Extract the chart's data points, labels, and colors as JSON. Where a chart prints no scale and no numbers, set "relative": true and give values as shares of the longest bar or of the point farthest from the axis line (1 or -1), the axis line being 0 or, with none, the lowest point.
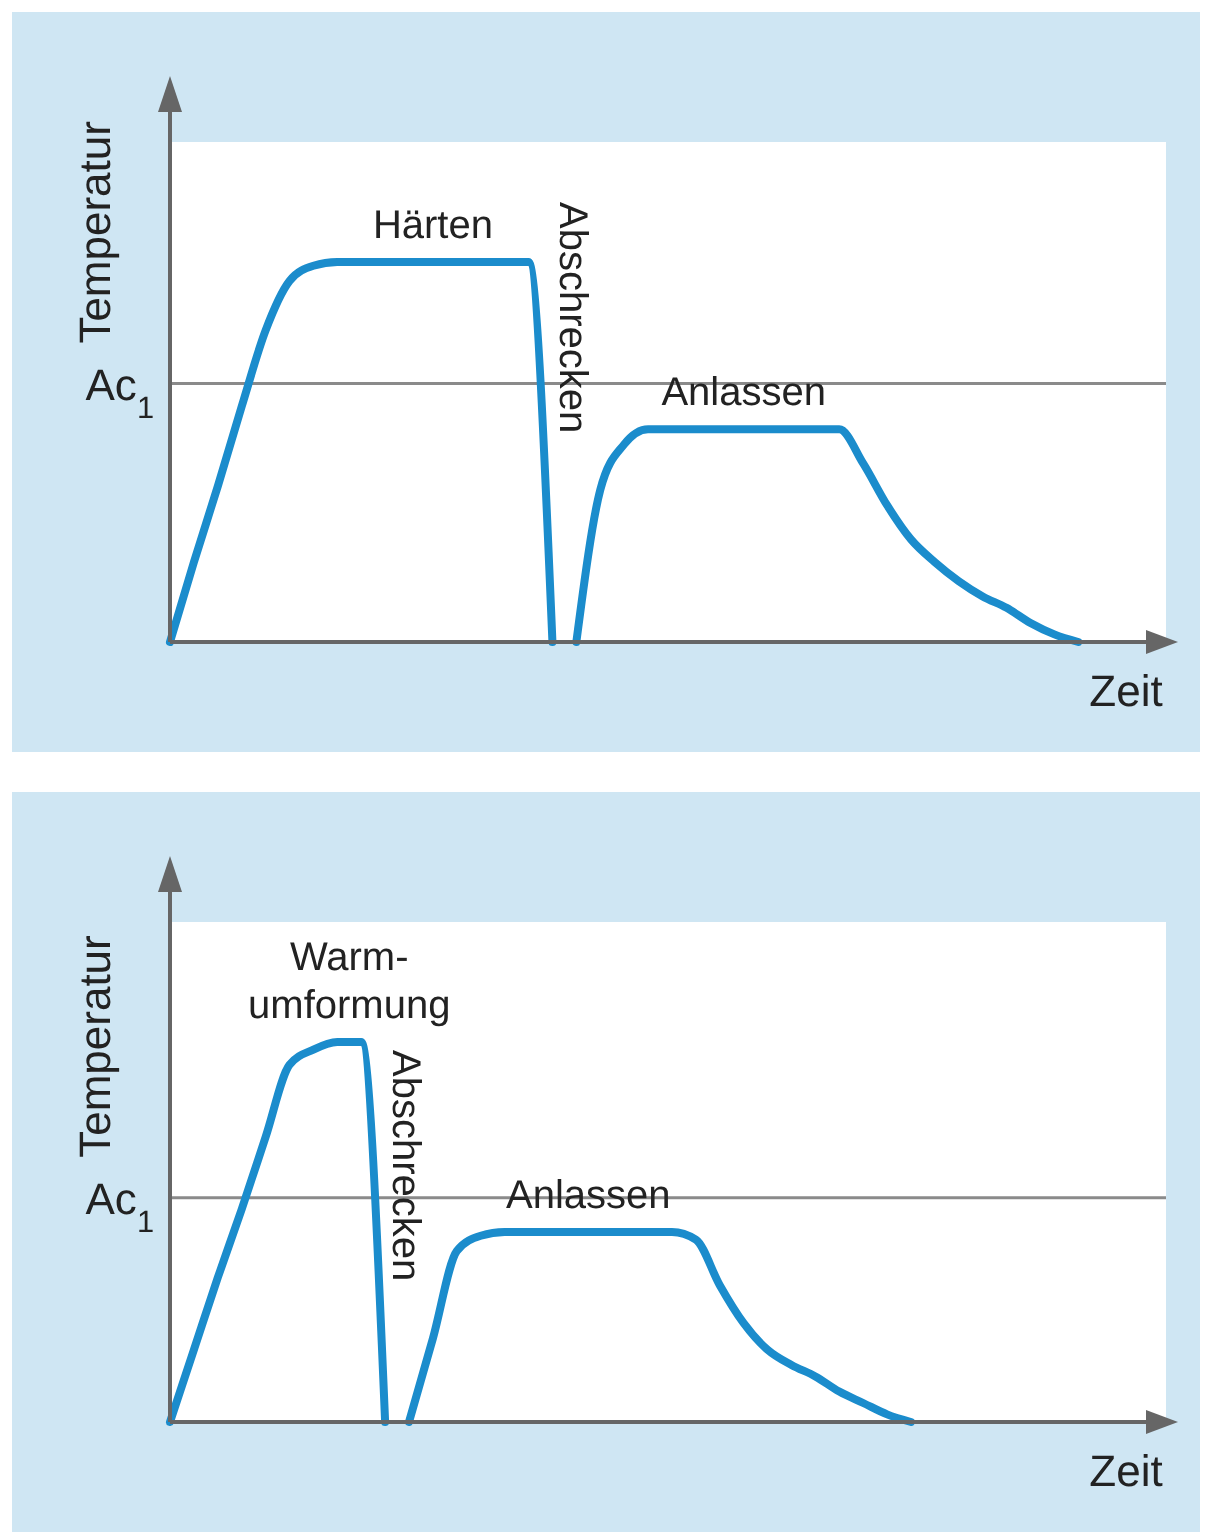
{
  "chart_data": [
    {
      "type": "line",
      "relative": true,
      "xlabel": "Zeit",
      "ylabel": "Temperatur",
      "categories": [
        null,
        null,
        null,
        null,
        null,
        null,
        null,
        null,
        null,
        null,
        null,
        null,
        null,
        null,
        null,
        null,
        null,
        null,
        null,
        null,
        null,
        null,
        null,
        null,
        null,
        null,
        null,
        null,
        null,
        null,
        null,
        null,
        null,
        null,
        null,
        null,
        null,
        null,
        null,
        null,
        null,
        null
      ],
      "series": [
        {
          "color": "#1b8ccc",
          "values": [
            0,
            0.21,
            0.41,
            0.62,
            0.82,
            0.95,
            0.99,
            1,
            1,
            1,
            1,
            1,
            1,
            1,
            1,
            1,
            0,
            null,
            null,
            null,
            null,
            null,
            null,
            null,
            null,
            null,
            null,
            null,
            null,
            null,
            null,
            null,
            null,
            null,
            null,
            null,
            null,
            null,
            null,
            null,
            null,
            null
          ]
        },
        {
          "color": "#1b8ccc",
          "values": [
            null,
            null,
            null,
            null,
            null,
            null,
            null,
            null,
            null,
            null,
            null,
            null,
            null,
            null,
            null,
            null,
            null,
            0,
            0.4,
            0.52,
            0.56,
            0.56,
            0.56,
            0.56,
            0.56,
            0.56,
            0.56,
            0.56,
            0.56,
            0.47,
            0.36,
            0.27,
            0.21,
            0.16,
            0.12,
            0.09,
            0.05,
            0.02,
            0,
            null,
            null,
            null
          ]
        }
      ],
      "ref_lines": [
        {
          "axis": "y",
          "value": 0.68,
          "label": "Ac$_{1}$",
          "color": "#8a8a8a"
        }
      ],
      "annotations": [
        "Härten",
        "Abschrecken",
        "Anlassen"
      ]
    },
    {
      "type": "line",
      "relative": true,
      "xlabel": "Zeit",
      "ylabel": "Temperatur",
      "categories": [
        null,
        null,
        null,
        null,
        null,
        null,
        null,
        null,
        null,
        null,
        null,
        null,
        null,
        null,
        null,
        null,
        null,
        null,
        null,
        null,
        null,
        null,
        null,
        null,
        null,
        null,
        null,
        null,
        null,
        null,
        null,
        null,
        null,
        null,
        null,
        null,
        null,
        null,
        null,
        null,
        null,
        null
      ],
      "series": [
        {
          "color": "#1b8ccc",
          "values": [
            0,
            0.19,
            0.38,
            0.56,
            0.75,
            0.94,
            0.98,
            1,
            1,
            0,
            null,
            null,
            null,
            null,
            null,
            null,
            null,
            null,
            null,
            null,
            null,
            null,
            null,
            null,
            null,
            null,
            null,
            null,
            null,
            null,
            null,
            null,
            null,
            null,
            null,
            null,
            null,
            null,
            null,
            null,
            null,
            null
          ]
        },
        {
          "color": "#1b8ccc",
          "values": [
            null,
            null,
            null,
            null,
            null,
            null,
            null,
            null,
            null,
            null,
            0,
            0.22,
            0.45,
            0.49,
            0.5,
            0.5,
            0.5,
            0.5,
            0.5,
            0.5,
            0.5,
            0.5,
            0.48,
            0.36,
            0.26,
            0.19,
            0.15,
            0.12,
            0.08,
            0.05,
            0.02,
            0,
            null,
            null,
            null,
            null,
            null,
            null,
            null,
            null,
            null,
            null
          ]
        }
      ],
      "ref_lines": [
        {
          "axis": "y",
          "value": 0.59,
          "label": "Ac$_{1}$",
          "color": "#8a8a8a"
        }
      ],
      "annotations": [
        "Warm-\numformung",
        "Abschrecken",
        "Anlassen"
      ]
    }
  ]
}
